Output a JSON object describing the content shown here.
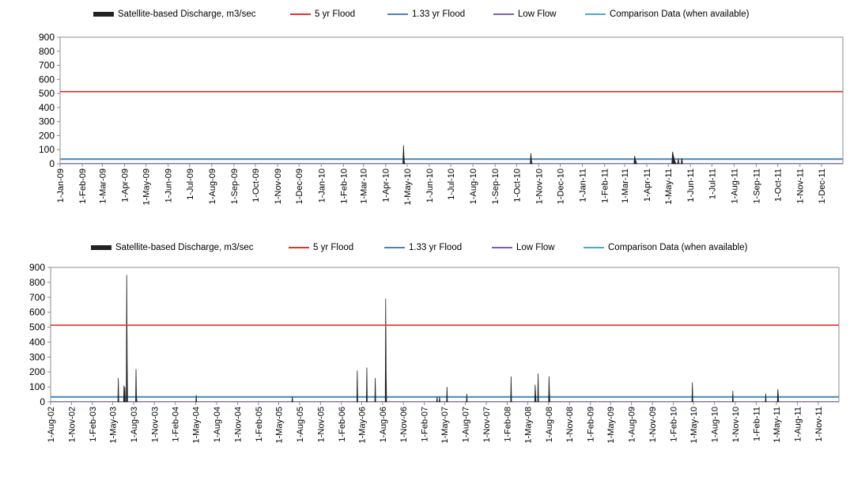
{
  "legend": [
    {
      "label": "Satellite-based Discharge, m3/sec",
      "kind": "area",
      "color": "#222222"
    },
    {
      "label": "5 yr Flood",
      "kind": "line",
      "color": "#e8302a"
    },
    {
      "label": "1.33 yr Flood",
      "kind": "line",
      "color": "#4f81bd"
    },
    {
      "label": "Low Flow",
      "kind": "line",
      "color": "#7f5fa8"
    },
    {
      "label": "Comparison Data (when available)",
      "kind": "line",
      "color": "#4bacc6"
    }
  ],
  "chart_data": [
    {
      "type": "area",
      "title": "",
      "xlabel": "",
      "ylabel": "",
      "ylim": [
        0,
        900
      ],
      "yticks": [
        0,
        100,
        200,
        300,
        400,
        500,
        600,
        700,
        800,
        900
      ],
      "xlim": [
        "2009-01-01",
        "2011-12-31"
      ],
      "x_tick_labels": [
        "1-Jan-09",
        "1-Feb-09",
        "1-Mar-09",
        "1-Apr-09",
        "1-May-09",
        "1-Jun-09",
        "1-Jul-09",
        "1-Aug-09",
        "1-Sep-09",
        "1-Oct-09",
        "1-Nov-09",
        "1-Dec-09",
        "1-Jan-10",
        "1-Feb-10",
        "1-Mar-10",
        "1-Apr-10",
        "1-May-10",
        "1-Jun-10",
        "1-Jul-10",
        "1-Aug-10",
        "1-Sep-10",
        "1-Oct-10",
        "1-Nov-10",
        "1-Dec-10",
        "1-Jan-11",
        "1-Feb-11",
        "1-Mar-11",
        "1-Apr-11",
        "1-May-11",
        "1-Jun-11",
        "1-Jul-11",
        "1-Aug-11",
        "1-Sep-11",
        "1-Oct-11",
        "1-Nov-11",
        "1-Dec-11"
      ],
      "x_tick_dates": [
        "2009-01-01",
        "2009-02-01",
        "2009-03-01",
        "2009-04-01",
        "2009-05-01",
        "2009-06-01",
        "2009-07-01",
        "2009-08-01",
        "2009-09-01",
        "2009-10-01",
        "2009-11-01",
        "2009-12-01",
        "2010-01-01",
        "2010-02-01",
        "2010-03-01",
        "2010-04-01",
        "2010-05-01",
        "2010-06-01",
        "2010-07-01",
        "2010-08-01",
        "2010-09-01",
        "2010-10-01",
        "2010-11-01",
        "2010-12-01",
        "2011-01-01",
        "2011-02-01",
        "2011-03-01",
        "2011-04-01",
        "2011-05-01",
        "2011-06-01",
        "2011-07-01",
        "2011-08-01",
        "2011-09-01",
        "2011-10-01",
        "2011-11-01",
        "2011-12-01"
      ],
      "grid": false,
      "legend_position": "top",
      "reference_lines": {
        "5 yr Flood": 513,
        "1.33 yr Flood": 35,
        "Low Flow": 2
      },
      "series": [
        {
          "name": "Satellite-based Discharge, m3/sec",
          "color": "#222222",
          "points": [
            [
              "2010-04-25",
              0
            ],
            [
              "2010-04-26",
              130
            ],
            [
              "2010-04-27",
              20
            ],
            [
              "2010-04-28",
              0
            ],
            [
              "2010-10-20",
              0
            ],
            [
              "2010-10-21",
              75
            ],
            [
              "2010-10-22",
              15
            ],
            [
              "2010-10-23",
              0
            ],
            [
              "2011-03-14",
              0
            ],
            [
              "2011-03-15",
              55
            ],
            [
              "2011-03-16",
              30
            ],
            [
              "2011-03-18",
              0
            ],
            [
              "2011-05-06",
              0
            ],
            [
              "2011-05-07",
              85
            ],
            [
              "2011-05-08",
              60
            ],
            [
              "2011-05-10",
              20
            ],
            [
              "2011-05-12",
              0
            ],
            [
              "2011-05-14",
              0
            ],
            [
              "2011-05-15",
              35
            ],
            [
              "2011-05-16",
              0
            ],
            [
              "2011-05-19",
              0
            ],
            [
              "2011-05-20",
              40
            ],
            [
              "2011-05-21",
              0
            ]
          ]
        }
      ]
    },
    {
      "type": "area",
      "title": "",
      "xlabel": "",
      "ylabel": "",
      "ylim": [
        0,
        900
      ],
      "yticks": [
        0,
        100,
        200,
        300,
        400,
        500,
        600,
        700,
        800,
        900
      ],
      "xlim": [
        "2002-08-01",
        "2012-01-31"
      ],
      "x_tick_labels": [
        "1-Aug-02",
        "1-Nov-02",
        "1-Feb-03",
        "1-May-03",
        "1-Aug-03",
        "1-Nov-03",
        "1-Feb-04",
        "1-May-04",
        "1-Aug-04",
        "1-Nov-04",
        "1-Feb-05",
        "1-May-05",
        "1-Aug-05",
        "1-Nov-05",
        "1-Feb-06",
        "1-May-06",
        "1-Aug-06",
        "1-Nov-06",
        "1-Feb-07",
        "1-May-07",
        "1-Aug-07",
        "1-Nov-07",
        "1-Feb-08",
        "1-May-08",
        "1-Aug-08",
        "1-Nov-08",
        "1-Feb-09",
        "1-May-09",
        "1-Aug-09",
        "1-Nov-09",
        "1-Feb-10",
        "1-May-10",
        "1-Aug-10",
        "1-Nov-10",
        "1-Feb-11",
        "1-May-11",
        "1-Aug-11",
        "1-Nov-11"
      ],
      "x_tick_dates": [
        "2002-08-01",
        "2002-11-01",
        "2003-02-01",
        "2003-05-01",
        "2003-08-01",
        "2003-11-01",
        "2004-02-01",
        "2004-05-01",
        "2004-08-01",
        "2004-11-01",
        "2005-02-01",
        "2005-05-01",
        "2005-08-01",
        "2005-11-01",
        "2006-02-01",
        "2006-05-01",
        "2006-08-01",
        "2006-11-01",
        "2007-02-01",
        "2007-05-01",
        "2007-08-01",
        "2007-11-01",
        "2008-02-01",
        "2008-05-01",
        "2008-08-01",
        "2008-11-01",
        "2009-02-01",
        "2009-05-01",
        "2009-08-01",
        "2009-11-01",
        "2010-02-01",
        "2010-05-01",
        "2010-08-01",
        "2010-11-01",
        "2011-02-01",
        "2011-05-01",
        "2011-08-01",
        "2011-11-01"
      ],
      "grid": false,
      "legend_position": "top",
      "reference_lines": {
        "5 yr Flood": 513,
        "1.33 yr Flood": 35,
        "Low Flow": 2
      },
      "series": [
        {
          "name": "Satellite-based Discharge, m3/sec",
          "color": "#222222",
          "points": [
            [
              "2003-05-24",
              0
            ],
            [
              "2003-05-26",
              160
            ],
            [
              "2003-05-28",
              0
            ],
            [
              "2003-06-18",
              0
            ],
            [
              "2003-06-20",
              110
            ],
            [
              "2003-06-22",
              30
            ],
            [
              "2003-06-24",
              100
            ],
            [
              "2003-06-26",
              0
            ],
            [
              "2003-06-30",
              0
            ],
            [
              "2003-07-02",
              850
            ],
            [
              "2003-07-04",
              300
            ],
            [
              "2003-07-06",
              0
            ],
            [
              "2003-08-10",
              0
            ],
            [
              "2003-08-12",
              220
            ],
            [
              "2003-08-14",
              40
            ],
            [
              "2003-08-16",
              0
            ],
            [
              "2004-05-01",
              0
            ],
            [
              "2004-05-03",
              45
            ],
            [
              "2004-05-05",
              0
            ],
            [
              "2005-06-28",
              0
            ],
            [
              "2005-06-30",
              35
            ],
            [
              "2005-07-02",
              0
            ],
            [
              "2006-04-10",
              0
            ],
            [
              "2006-04-12",
              210
            ],
            [
              "2006-04-14",
              0
            ],
            [
              "2006-05-22",
              0
            ],
            [
              "2006-05-24",
              230
            ],
            [
              "2006-05-26",
              0
            ],
            [
              "2006-06-28",
              0
            ],
            [
              "2006-06-30",
              160
            ],
            [
              "2006-07-02",
              0
            ],
            [
              "2006-08-13",
              0
            ],
            [
              "2006-08-15",
              690
            ],
            [
              "2006-08-17",
              200
            ],
            [
              "2006-08-19",
              0
            ],
            [
              "2007-03-27",
              0
            ],
            [
              "2007-03-29",
              35
            ],
            [
              "2007-03-31",
              0
            ],
            [
              "2007-04-07",
              0
            ],
            [
              "2007-04-09",
              35
            ],
            [
              "2007-04-11",
              0
            ],
            [
              "2007-05-10",
              0
            ],
            [
              "2007-05-12",
              100
            ],
            [
              "2007-05-14",
              0
            ],
            [
              "2007-08-05",
              0
            ],
            [
              "2007-08-07",
              55
            ],
            [
              "2007-08-09",
              0
            ],
            [
              "2008-02-16",
              0
            ],
            [
              "2008-02-18",
              170
            ],
            [
              "2008-02-20",
              0
            ],
            [
              "2008-06-01",
              0
            ],
            [
              "2008-06-03",
              115
            ],
            [
              "2008-06-05",
              50
            ],
            [
              "2008-06-07",
              0
            ],
            [
              "2008-06-14",
              0
            ],
            [
              "2008-06-16",
              190
            ],
            [
              "2008-06-18",
              0
            ],
            [
              "2008-08-01",
              0
            ],
            [
              "2008-08-03",
              170
            ],
            [
              "2008-08-05",
              60
            ],
            [
              "2008-08-07",
              0
            ],
            [
              "2010-04-24",
              0
            ],
            [
              "2010-04-26",
              130
            ],
            [
              "2010-04-28",
              0
            ],
            [
              "2010-10-19",
              0
            ],
            [
              "2010-10-21",
              75
            ],
            [
              "2010-10-23",
              0
            ],
            [
              "2011-03-13",
              0
            ],
            [
              "2011-03-15",
              55
            ],
            [
              "2011-03-17",
              0
            ],
            [
              "2011-05-05",
              0
            ],
            [
              "2011-05-07",
              85
            ],
            [
              "2011-05-09",
              55
            ],
            [
              "2011-05-11",
              0
            ]
          ]
        }
      ]
    }
  ]
}
